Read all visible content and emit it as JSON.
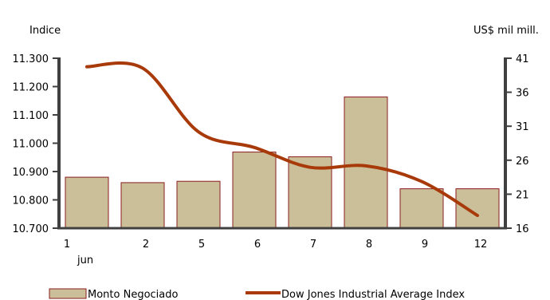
{
  "chart_data": {
    "type": "bar",
    "categories": [
      "1",
      "2",
      "5",
      "6",
      "7",
      "8",
      "9",
      "12"
    ],
    "x_sublabel": "jun",
    "y_left": {
      "label": "Indice",
      "ylim": [
        10700,
        11300
      ],
      "ticks": [
        "10.700",
        "10.800",
        "10.900",
        "11.000",
        "11.100",
        "11.200",
        "11.300"
      ]
    },
    "y_right": {
      "label": "US$ mil mill.",
      "ylim": [
        16,
        41
      ],
      "ticks": [
        "16",
        "21",
        "26",
        "31",
        "36",
        "41"
      ]
    },
    "series": [
      {
        "name": "Monto Negociado",
        "type": "bar",
        "axis": "right",
        "values": [
          23.5,
          22.7,
          22.9,
          27.2,
          26.5,
          35.3,
          21.8,
          21.8
        ]
      },
      {
        "name": "Dow Jones Industrial Average Index",
        "type": "line",
        "axis": "left",
        "values": [
          11270,
          11265,
          11040,
          10985,
          10915,
          10920,
          10865,
          10745
        ]
      }
    ],
    "legend_position": "bottom",
    "grid": false,
    "colors": {
      "bar_fill": "#cbbf9a",
      "bar_stroke": "#8b1c1c",
      "line": "#a83a0a",
      "axis": "#404040"
    }
  }
}
